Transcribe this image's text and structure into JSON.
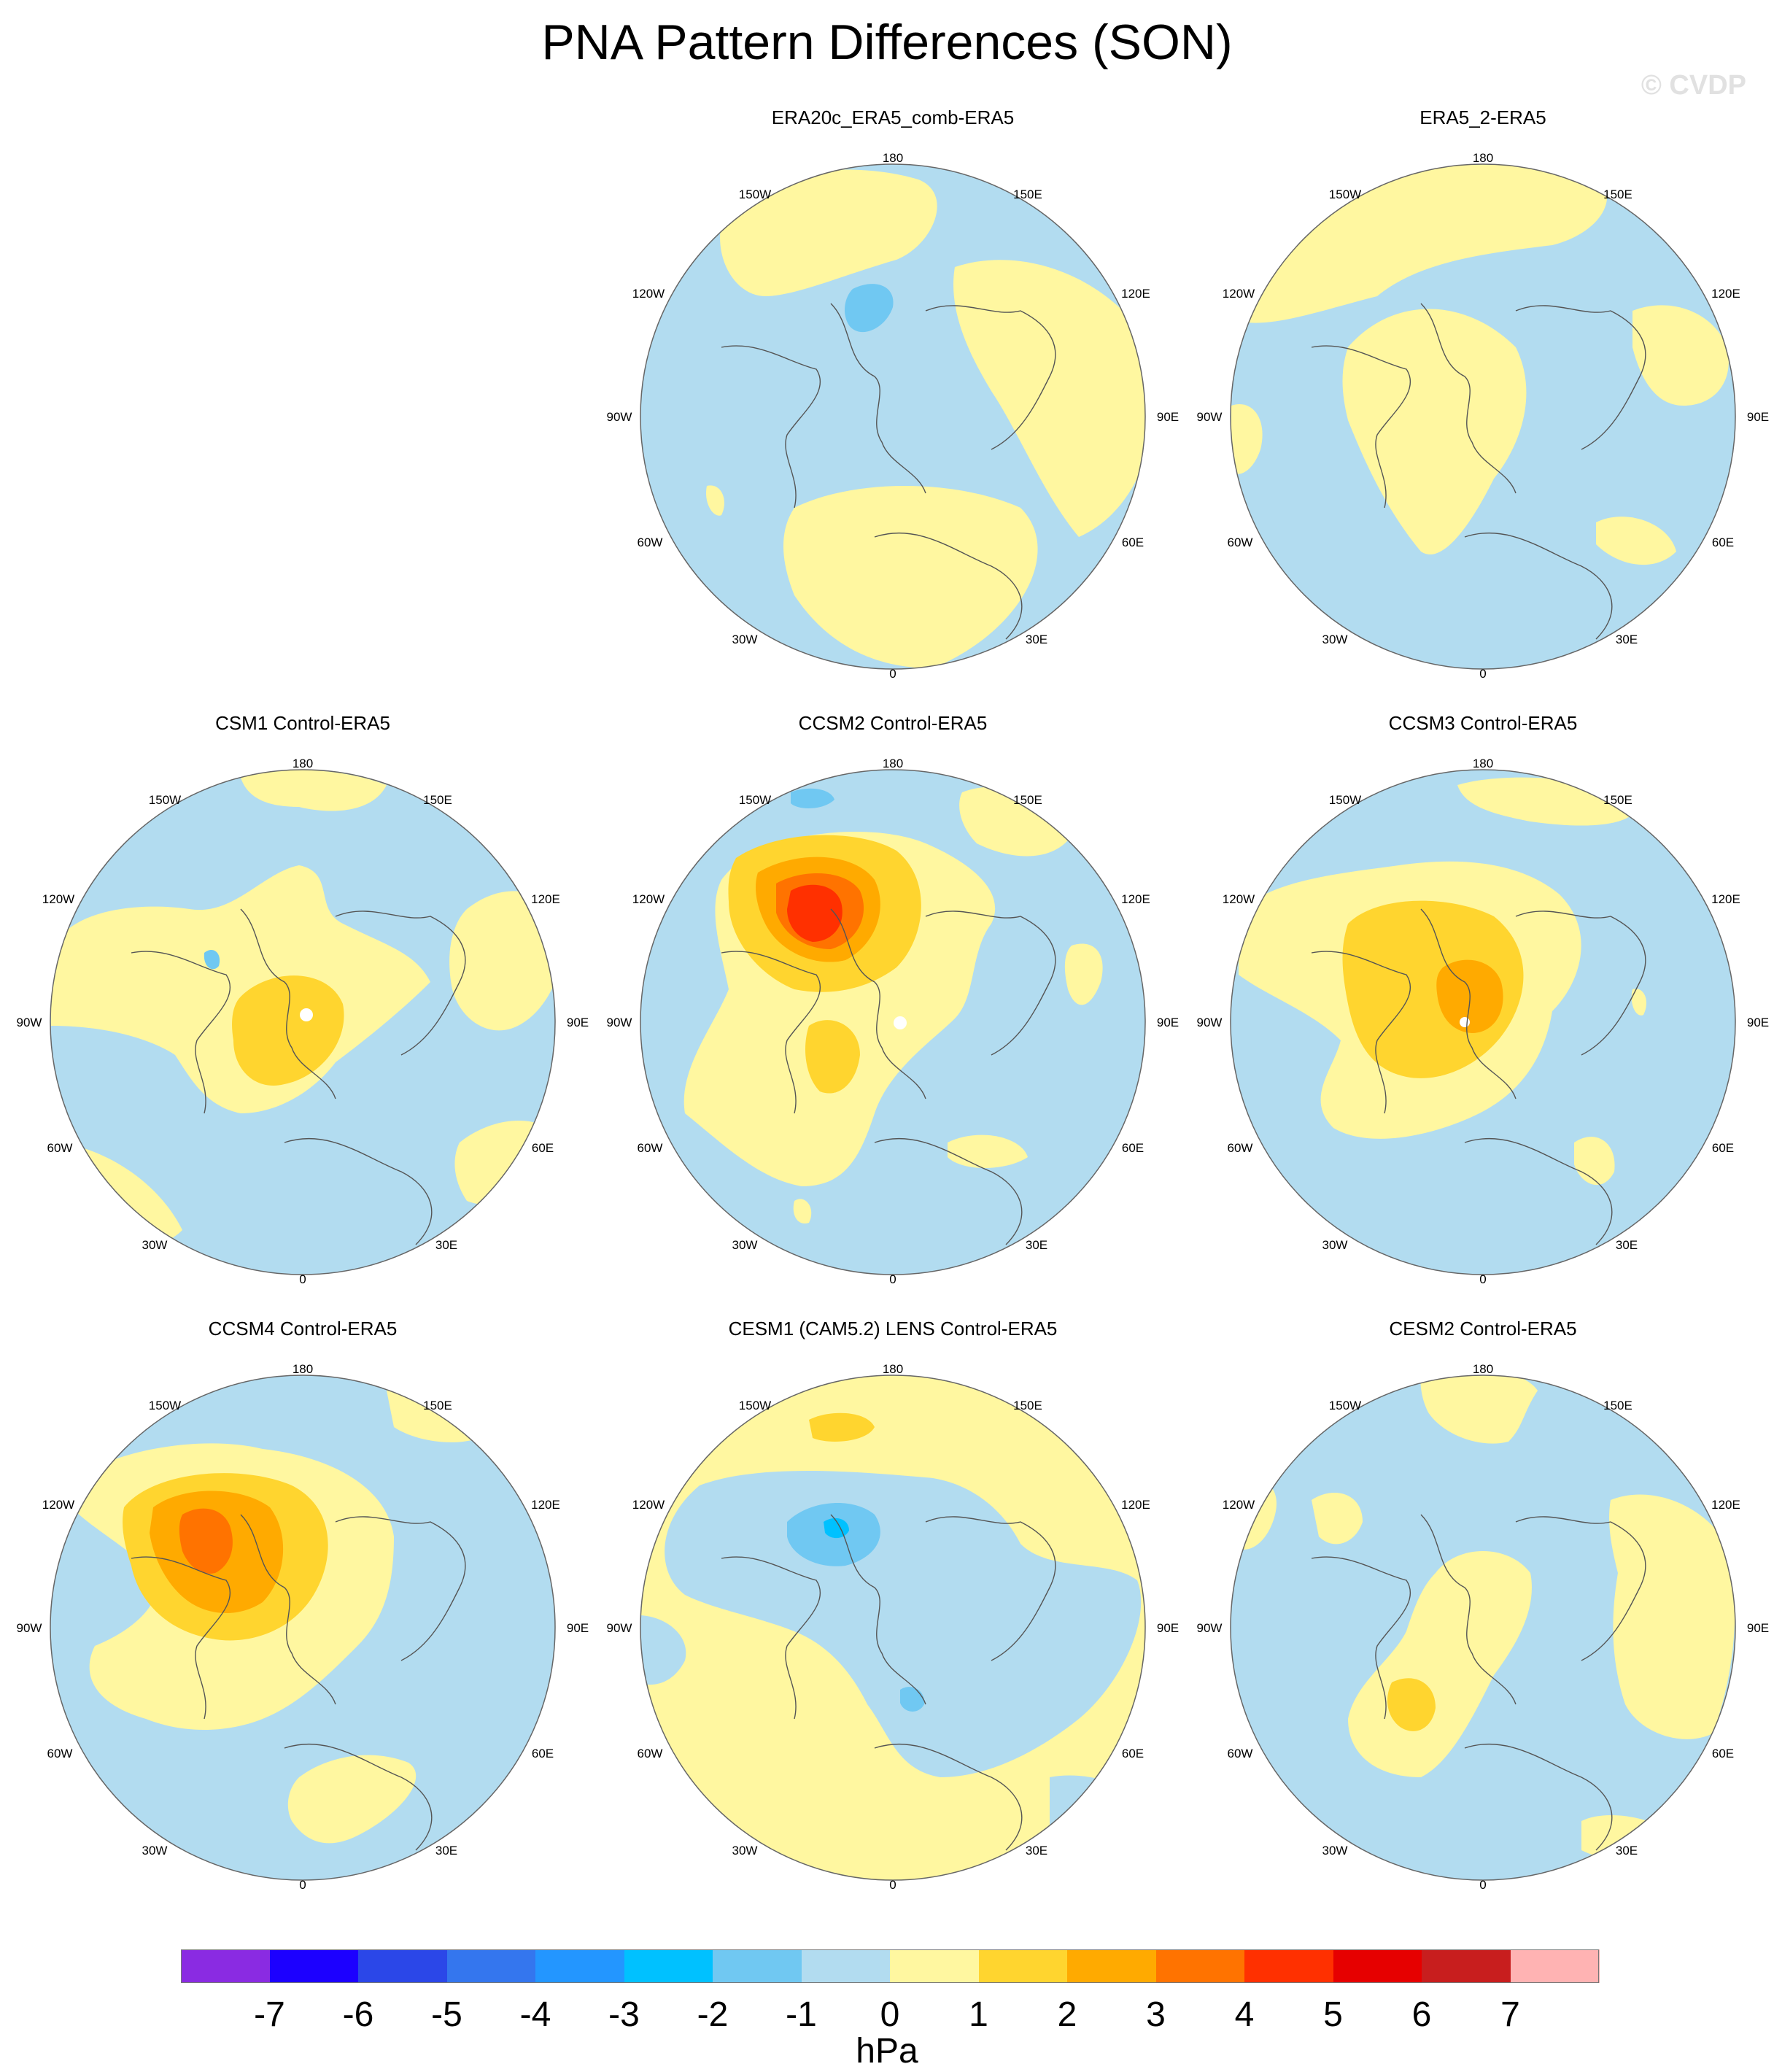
{
  "title": "PNA Pattern Differences (SON)",
  "watermark": "© CVDP",
  "units": "hPa",
  "contour_levels": [
    -7,
    -6,
    -5,
    -4,
    -3,
    -2,
    -1,
    0,
    1,
    2,
    3,
    4,
    5,
    6,
    7
  ],
  "level_labels": [
    "-7",
    "-6",
    "-5",
    "-4",
    "-3",
    "-2",
    "-1",
    "0",
    "1",
    "2",
    "3",
    "4",
    "5",
    "6",
    "7"
  ],
  "colors": [
    "#8a2be2",
    "#1c00ff",
    "#2b47e8",
    "#3476ee",
    "#2396ff",
    "#00c1ff",
    "#70c8f2",
    "#b2dcf0",
    "#fff7a0",
    "#ffd52f",
    "#ffaa00",
    "#ff7300",
    "#ff3000",
    "#e60000",
    "#c81e1e",
    "#ffb3b3"
  ],
  "longitude_labels": [
    "180",
    "150E",
    "120E",
    "90E",
    "60E",
    "30E",
    "0",
    "30W",
    "60W",
    "90W",
    "120W",
    "150W"
  ],
  "panels": [
    {
      "title": "ERA20c_ERA5_comb-ERA5"
    },
    {
      "title": "ERA5_2-ERA5"
    },
    {
      "title": "CSM1 Control-ERA5"
    },
    {
      "title": "CCSM2 Control-ERA5"
    },
    {
      "title": "CCSM3 Control-ERA5"
    },
    {
      "title": "CCSM4 Control-ERA5"
    },
    {
      "title": "CESM1 (CAM5.2) LENS Control-ERA5"
    },
    {
      "title": "CESM2 Control-ERA5"
    }
  ]
}
